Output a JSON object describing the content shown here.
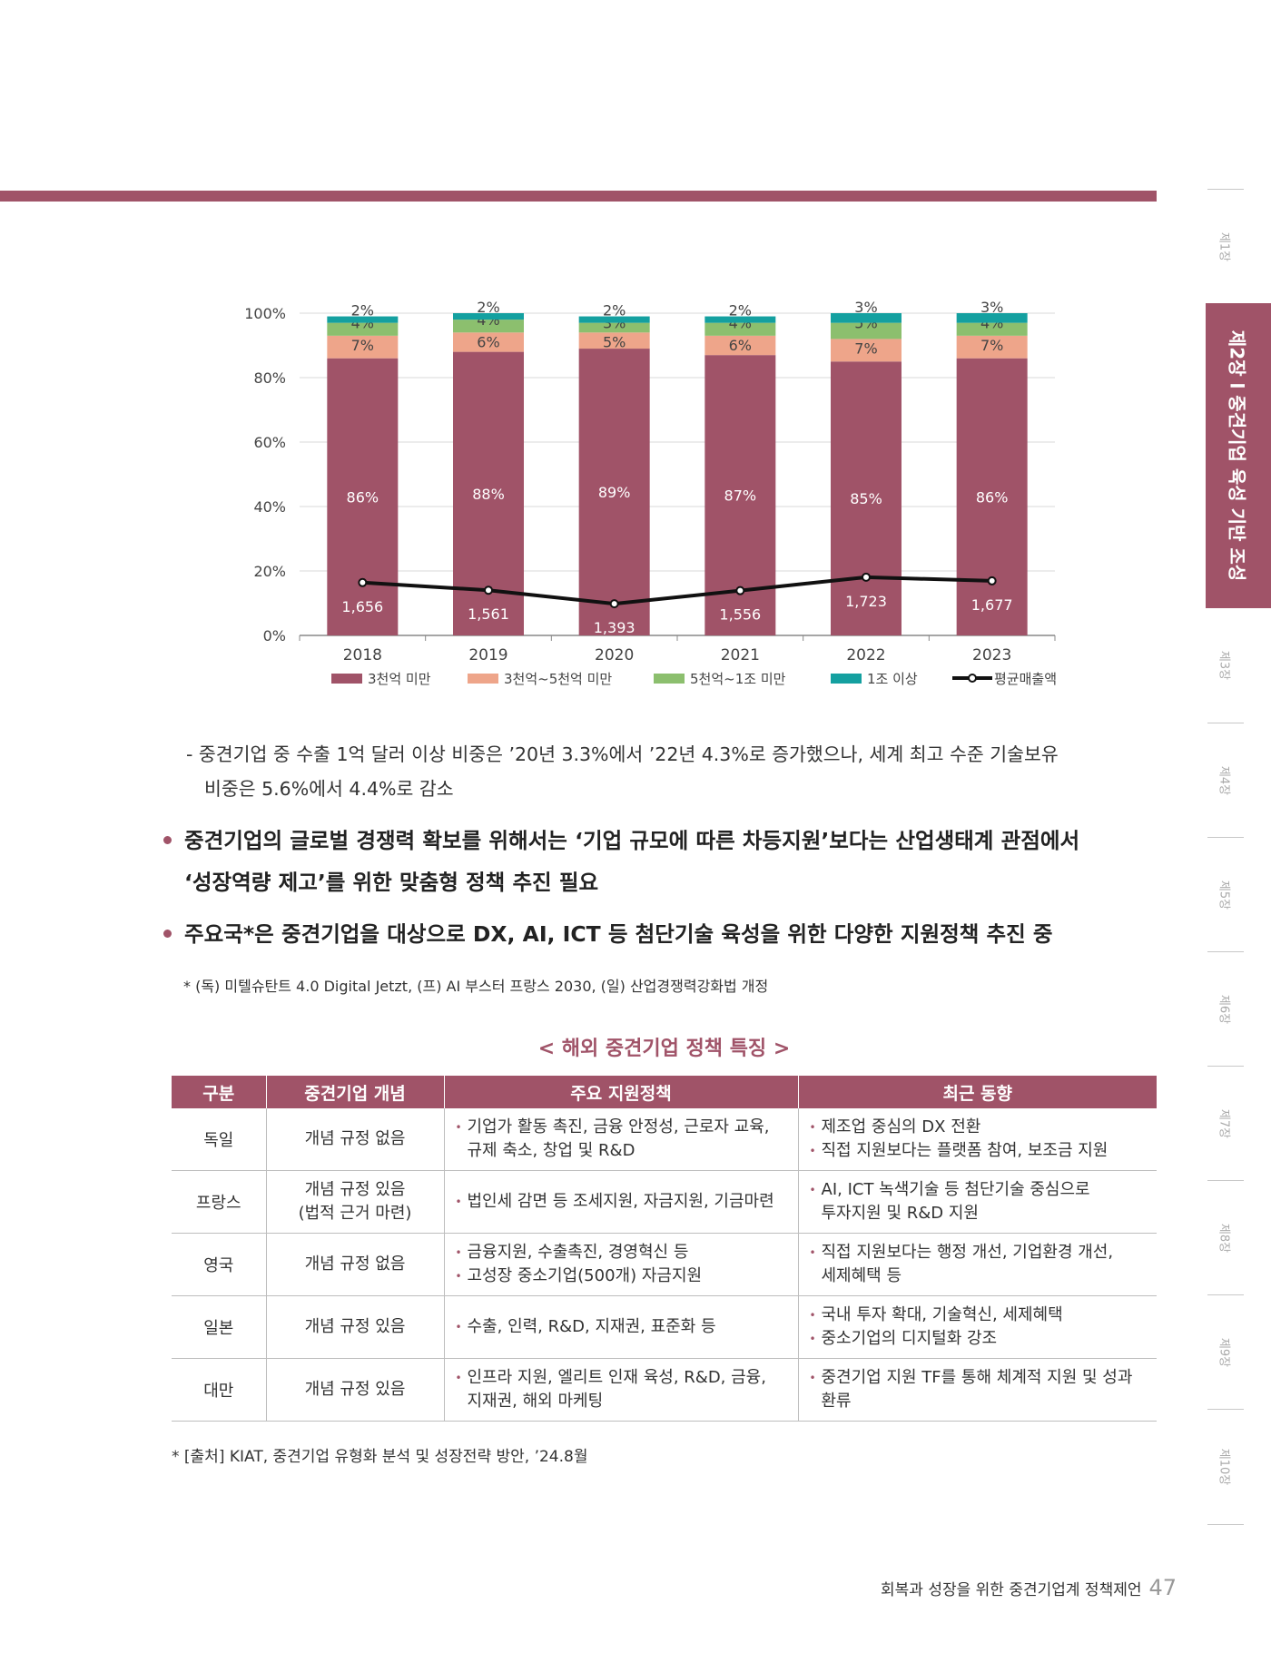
{
  "side_tabs": [
    "제1장",
    "제2장 l 중견기업 육성 기반 조성",
    "제3장",
    "제4장",
    "제5장",
    "제6장",
    "제7장",
    "제8장",
    "제9장",
    "제10장"
  ],
  "chart_data": {
    "type": "bar",
    "stacked": true,
    "categories": [
      "2018",
      "2019",
      "2020",
      "2021",
      "2022",
      "2023"
    ],
    "series": [
      {
        "name": "3천억 미만",
        "values": [
          86,
          88,
          89,
          87,
          85,
          86
        ],
        "labels": [
          "86%",
          "88%",
          "89%",
          "87%",
          "85%",
          "86%"
        ],
        "color": "#a05368"
      },
      {
        "name": "3천억~5천억 미만",
        "values": [
          7,
          6,
          5,
          6,
          7,
          7
        ],
        "labels": [
          "7%",
          "6%",
          "5%",
          "6%",
          "7%",
          "7%"
        ],
        "color": "#eea58a"
      },
      {
        "name": "5천억~1조 미만",
        "values": [
          4,
          4,
          3,
          4,
          5,
          4
        ],
        "labels": [
          "4%",
          "4%",
          "3%",
          "4%",
          "5%",
          "4%"
        ],
        "color": "#8cbf6e"
      },
      {
        "name": "1조 이상",
        "values": [
          2,
          2,
          2,
          2,
          3,
          3
        ],
        "labels": [
          "2%",
          "2%",
          "2%",
          "2%",
          "3%",
          "3%"
        ],
        "color": "#14a0a0"
      }
    ],
    "line": {
      "name": "평균매출액",
      "values": [
        1656,
        1561,
        1393,
        1556,
        1723,
        1677
      ],
      "labels": [
        "1,656",
        "1,561",
        "1,393",
        "1,556",
        "1,723",
        "1,677"
      ],
      "color": "#111111"
    },
    "y_ticks": [
      "0%",
      "20%",
      "40%",
      "60%",
      "80%",
      "100%"
    ],
    "ylim": [
      0,
      100
    ],
    "grid": true,
    "legend": "bottom"
  },
  "text": {
    "dash_line1": "- 중견기업 중 수출 1억 달러 이상 비중은 ’20년 3.3%에서 ’22년 4.3%로 증가했으나, 세계 최고 수준 기술보유",
    "dash_line2": "비중은 5.6%에서 4.4%로 감소",
    "bullet1_line1": "중견기업의 글로벌 경쟁력 확보를 위해서는 ‘기업 규모에 따른 차등지원’보다는 산업생태계 관점에서",
    "bullet1_line2": "‘성장역량 제고’를 위한 맞춤형 정책 추진 필요",
    "bullet2": "주요국*은 중견기업을 대상으로 DX, AI, ICT 등 첨단기술 육성을 위한 다양한 지원정책 추진 중",
    "note": "* (독) 미텔슈탄트 4.0 Digital Jetzt, (프) AI 부스터 프랑스 2030, (일) 산업경쟁력강화법 개정"
  },
  "table": {
    "title": "< 해외 중견기업 정책 특징 >",
    "headers": [
      "구분",
      "중견기업 개념",
      "주요 지원정책",
      "최근 동향"
    ],
    "rows": [
      {
        "country": "독일",
        "concept": "개념 규정 없음",
        "policy": [
          "기업가 활동 촉진, 금융 안정성, 근로자 교육,\n규제 축소, 창업 및 R&D"
        ],
        "trend": [
          "제조업 중심의 DX 전환",
          "직접 지원보다는 플랫폼 참여, 보조금 지원"
        ]
      },
      {
        "country": "프랑스",
        "concept": "개념 규정 있음\n(법적 근거 마련)",
        "policy": [
          "법인세 감면 등 조세지원, 자금지원, 기금마련"
        ],
        "trend": [
          "AI, ICT 녹색기술 등 첨단기술 중심으로\n투자지원 및 R&D 지원"
        ]
      },
      {
        "country": "영국",
        "concept": "개념 규정 없음",
        "policy": [
          "금융지원, 수출촉진, 경영혁신 등",
          "고성장 중소기업(500개) 자금지원"
        ],
        "trend": [
          "직접 지원보다는 행정 개선, 기업환경 개선,\n세제혜택 등"
        ]
      },
      {
        "country": "일본",
        "concept": "개념 규정 있음",
        "policy": [
          "수출, 인력, R&D, 지재권, 표준화 등"
        ],
        "trend": [
          "국내 투자 확대, 기술혁신, 세제혜택",
          "중소기업의 디지털화 강조"
        ]
      },
      {
        "country": "대만",
        "concept": "개념 규정 있음",
        "policy": [
          "인프라 지원, 엘리트 인재 육성, R&D, 금융,\n지재권, 해외 마케팅"
        ],
        "trend": [
          "중견기업 지원 TF를 통해 체계적 지원 및 성과\n환류"
        ]
      }
    ],
    "source": "* [출처] KIAT, 중견기업 유형화 분석 및 성장전략 방안, ’24.8월"
  },
  "footer": {
    "title": "회복과 성장을 위한  중견기업계 정책제언",
    "page": "47"
  }
}
